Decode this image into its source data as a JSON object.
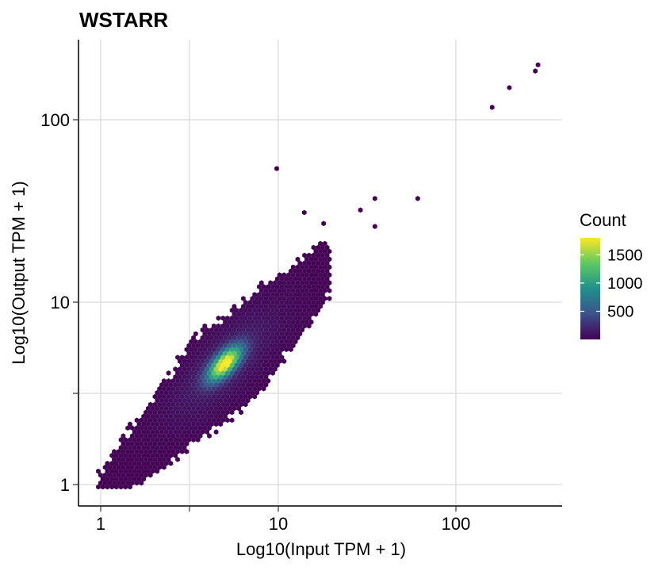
{
  "chart_data": {
    "type": "heatmap",
    "subtype": "hexbin",
    "title": "WSTARR",
    "xlabel": "Log10(Input TPM + 1)",
    "ylabel": "Log10(Output TPM + 1)",
    "x_scale": "log10",
    "y_scale": "log10",
    "xlim": [
      0.88,
      400
    ],
    "ylim": [
      0.78,
      270
    ],
    "x_ticks": [
      {
        "value": 1,
        "label": "1"
      },
      {
        "value": 10,
        "label": "10"
      },
      {
        "value": 100,
        "label": "100"
      }
    ],
    "y_ticks": [
      {
        "value": 1,
        "label": "1"
      },
      {
        "value": 10,
        "label": "10"
      },
      {
        "value": 100,
        "label": "100"
      }
    ],
    "minor_ticks": [
      3.162
    ],
    "grid": true,
    "legend": {
      "title": "Count",
      "placement": "right",
      "range": [
        1,
        1800
      ],
      "ticks": [
        {
          "value": 500,
          "label": "500"
        },
        {
          "value": 1000,
          "label": "1000"
        },
        {
          "value": 1500,
          "label": "1500"
        }
      ],
      "colormap": "viridis",
      "colors": [
        "#440154",
        "#3b528b",
        "#21908c",
        "#5dc863",
        "#fde725"
      ]
    },
    "density_peak": {
      "x": 5,
      "y": 4.6,
      "count": 1800
    },
    "outliers": [
      {
        "x": 290,
        "y": 200
      },
      {
        "x": 280,
        "y": 185
      },
      {
        "x": 200,
        "y": 150
      },
      {
        "x": 160,
        "y": 117
      },
      {
        "x": 61,
        "y": 37
      },
      {
        "x": 35,
        "y": 37
      },
      {
        "x": 29,
        "y": 32
      },
      {
        "x": 35,
        "y": 26
      },
      {
        "x": 9.8,
        "y": 54
      },
      {
        "x": 14,
        "y": 31
      },
      {
        "x": 18,
        "y": 27
      }
    ]
  }
}
